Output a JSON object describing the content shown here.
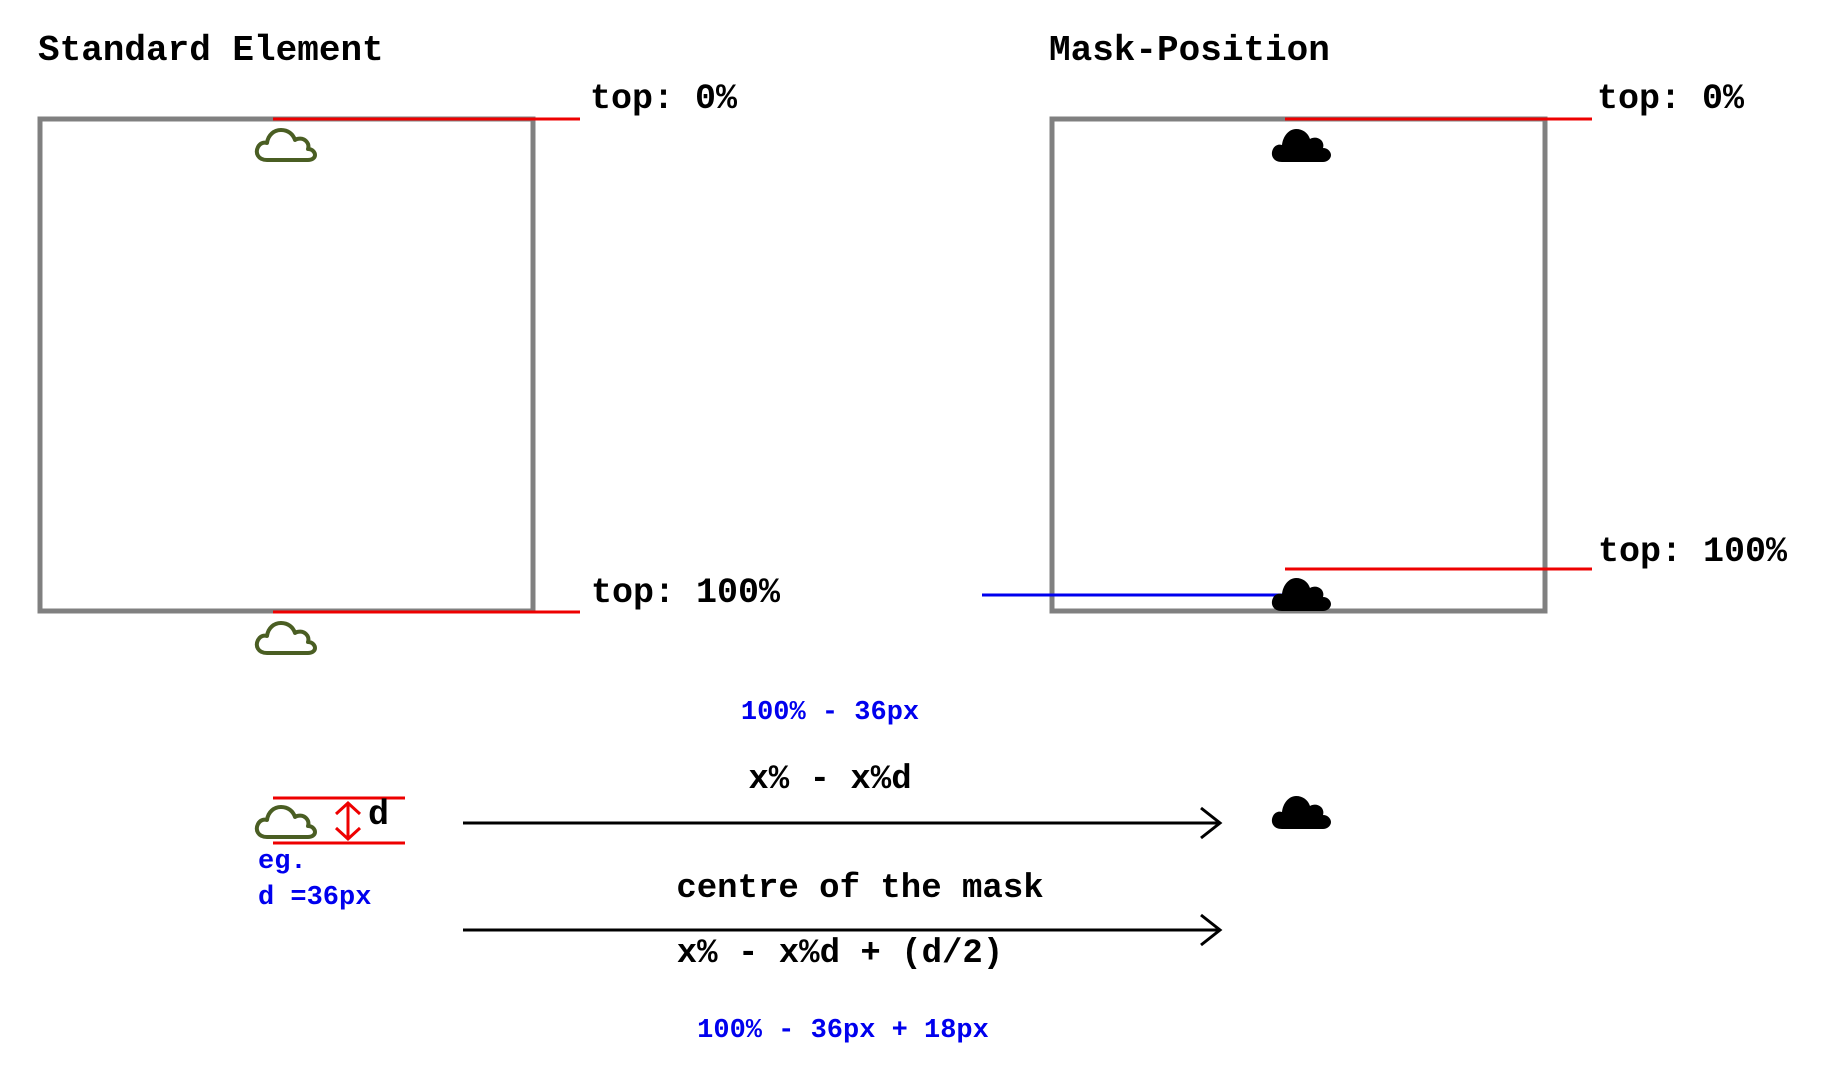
{
  "titles": {
    "standard": "Standard Element",
    "mask": "Mask-Position"
  },
  "labels": {
    "std_top0": "top: 0%",
    "std_top100": "top: 100%",
    "mask_top0": "top: 0%",
    "mask_top100": "top: 100%",
    "d": "d"
  },
  "formulas": {
    "example_1": "100% - 36px",
    "formula_1": "x% - x%d",
    "caption_2": "centre of the mask",
    "formula_2": "x% - x%d + (d/2)",
    "example_2": "100% - 36px + 18px"
  },
  "example": {
    "line1": "eg.",
    "line2": "d =36px"
  },
  "icons": {
    "outline_cloud": "cloud-outline-icon",
    "solid_cloud": "cloud-solid-icon",
    "double_arrow": "double-headed-arrow-icon",
    "arrow": "arrow-right-icon"
  },
  "colors": {
    "box": "#808080",
    "marker": "#ee0000",
    "blue": "#0000ee",
    "cloud_outline": "#4a5e23",
    "cloud_solid": "#000000"
  }
}
